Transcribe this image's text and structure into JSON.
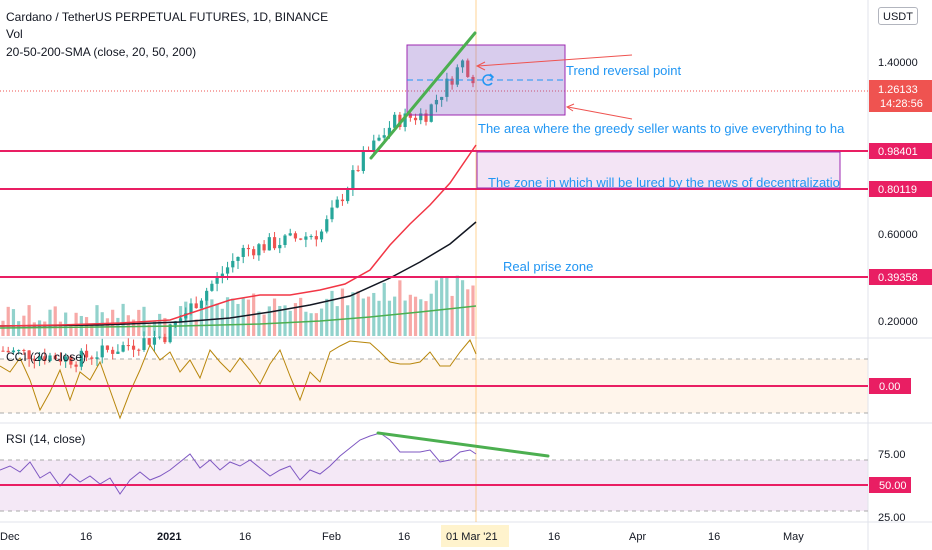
{
  "header": {
    "title": "Cardano / TetherUS PERPETUAL FUTURES, 1D, BINANCE",
    "vol_label": "Vol",
    "sma_label": "20-50-200-SMA (close, 20, 50, 200)",
    "currency_button": "USDT"
  },
  "price_axis": {
    "ticks": [
      "1.40000",
      "0.60000",
      "0.20000"
    ],
    "levels": [
      {
        "label": "0.98401",
        "value": 0.98401
      },
      {
        "label": "0.80119",
        "value": 0.80119
      },
      {
        "label": "0.39358",
        "value": 0.39358
      }
    ],
    "last_price": {
      "label": "1.26133",
      "value": 1.26133,
      "countdown": "14:28:56"
    },
    "scale": "log"
  },
  "annotations": {
    "trend_reversal": "Trend reversal point",
    "greedy_seller": "The area where the greedy seller wants to give everything to ha",
    "news_zone": "The zone in which will be lured by the news of decentralizatio",
    "real_price": "Real prise zone"
  },
  "cci": {
    "label": "CCI (20, close)",
    "level_label": "0.00"
  },
  "rsi": {
    "label": "RSI (14, close)",
    "ticks": [
      "75.00",
      "25.00"
    ],
    "level_label": "50.00"
  },
  "time_axis": {
    "ticks": [
      "Dec",
      "16",
      "2021",
      "16",
      "Feb",
      "16",
      "16",
      "Apr",
      "16",
      "May"
    ],
    "highlight": "01 Mar '21"
  },
  "colors": {
    "up": "#26a69a",
    "down": "#ef5350",
    "level_line": "#e91e63",
    "trendline": "#4caf50",
    "annotation_text": "#2196f3",
    "sma20": "#f23645",
    "sma50": "#131722",
    "sma200": "#4caf50"
  },
  "chart_data": {
    "type": "candlestick",
    "title": "Cardano / TetherUS PERPETUAL FUTURES, 1D, BINANCE",
    "interval": "1D",
    "exchange": "BINANCE",
    "y_scale": "log",
    "approx_close_series": [
      {
        "date": "2020-12-01",
        "close": 0.16
      },
      {
        "date": "2020-12-15",
        "close": 0.15
      },
      {
        "date": "2021-01-01",
        "close": 0.18
      },
      {
        "date": "2021-01-16",
        "close": 0.34
      },
      {
        "date": "2021-01-31",
        "close": 0.39
      },
      {
        "date": "2021-02-08",
        "close": 0.68
      },
      {
        "date": "2021-02-14",
        "close": 0.9
      },
      {
        "date": "2021-02-20",
        "close": 0.95
      },
      {
        "date": "2021-02-27",
        "close": 1.4
      },
      {
        "date": "2021-03-01",
        "close": 1.26133
      }
    ],
    "horizontal_levels": [
      0.98401,
      0.80119,
      0.39358
    ],
    "last_price": 1.26133
  }
}
